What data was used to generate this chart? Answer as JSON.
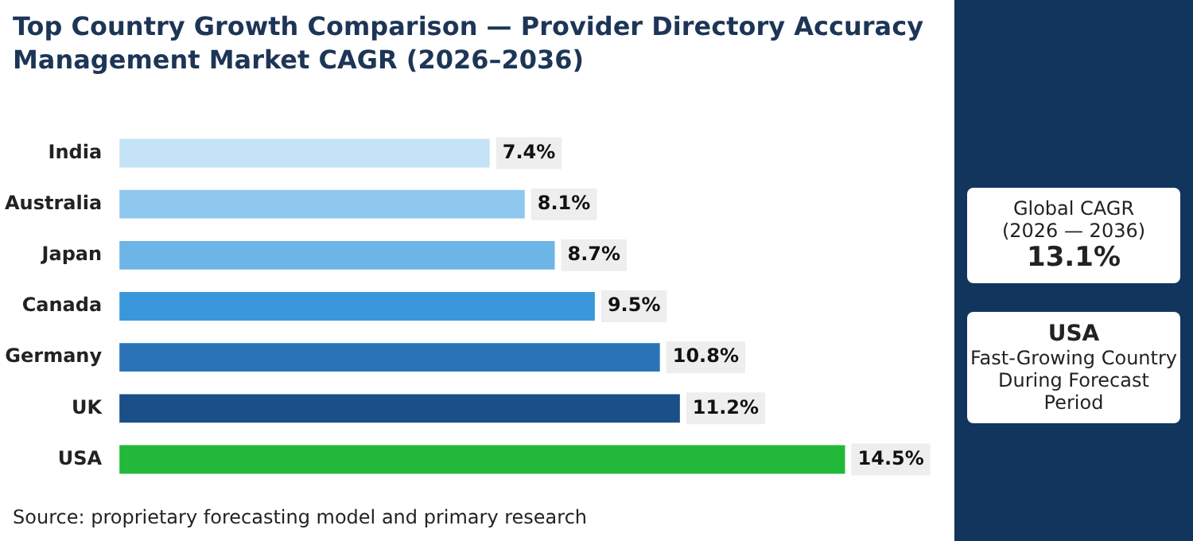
{
  "chart_data": {
    "type": "bar",
    "orientation": "horizontal",
    "title": "Top Country Growth Comparison — Provider Directory Accuracy Management Market CAGR (2026–2036)",
    "categories": [
      "India",
      "Australia",
      "Japan",
      "Canada",
      "Germany",
      "UK",
      "USA"
    ],
    "values": [
      7.4,
      8.1,
      8.7,
      9.5,
      10.8,
      11.2,
      14.5
    ],
    "colors": [
      "#c5e3f6",
      "#8fc8ee",
      "#6db5e6",
      "#3a97da",
      "#2a73b6",
      "#1a4f87",
      "#22b83a"
    ],
    "data_labels": true,
    "value_labels": [
      "7.4%",
      "8.1%",
      "8.7%",
      "9.5%",
      "10.8%",
      "11.2%",
      "14.5%"
    ],
    "legend": false,
    "annotations": [
      "Source: proprietary forecasting model and primary research",
      "Global CAGR",
      "(2026 — 2036)",
      "13.1%",
      "USA",
      "Fast-Growing Country During Forecast Period"
    ]
  }
}
